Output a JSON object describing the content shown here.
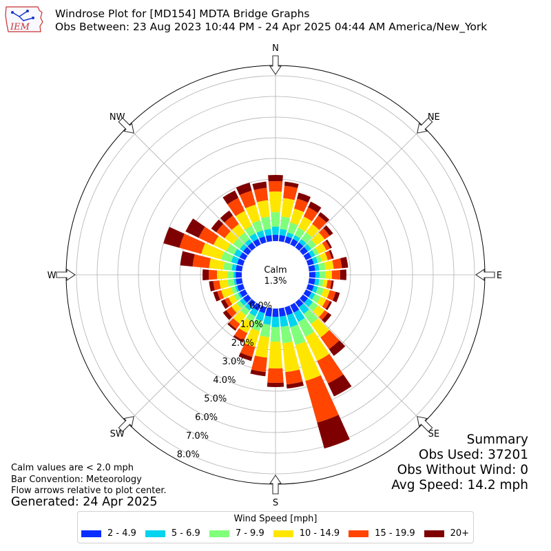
{
  "header": {
    "logo_text": "IEM",
    "title_line1": "Windrose Plot for [MD154] MDTA Bridge Graphs",
    "title_line2": "Obs Between: 23 Aug 2023 10:44 PM - 24 Apr 2025 04:44 AM America/New_York"
  },
  "notes": {
    "calm_note": "Calm values are < 2.0 mph",
    "bar_convention": "Bar Convention: Meteorology",
    "flow_arrows": "Flow arrows relative to plot center.",
    "generated": "Generated: 24 Apr 2025"
  },
  "summary": {
    "heading": "Summary",
    "obs_used": "Obs Used: 37201",
    "obs_without_wind": "Obs Without Wind: 0",
    "avg_speed": "Avg Speed: 14.2 mph"
  },
  "legend": {
    "title": "Wind Speed [mph]",
    "items": [
      {
        "label": "2 - 4.9",
        "color": "#0a2eff"
      },
      {
        "label": "5 - 6.9",
        "color": "#00d4ee"
      },
      {
        "label": "7 - 9.9",
        "color": "#80ff7a"
      },
      {
        "label": "10 - 14.9",
        "color": "#ffe600"
      },
      {
        "label": "15 - 19.9",
        "color": "#ff4500"
      },
      {
        "label": "20+",
        "color": "#7f0000"
      }
    ]
  },
  "chart_data": {
    "type": "windrose",
    "compass_labels": [
      "N",
      "NE",
      "E",
      "SE",
      "S",
      "SW",
      "W",
      "NW"
    ],
    "calm_label": "Calm",
    "calm_value": "1.3%",
    "radial_tick_labels": [
      "0.0%",
      "1.0%",
      "2.0%",
      "3.0%",
      "4.0%",
      "5.0%",
      "6.0%",
      "7.0%",
      "8.0%"
    ],
    "rmax_percent": 8.5,
    "grid": true,
    "units": "percent of observations",
    "speed_bins": [
      "2 - 4.9",
      "5 - 6.9",
      "7 - 9.9",
      "10 - 14.9",
      "15 - 19.9",
      "20+"
    ],
    "bin_colors": [
      "#0a2eff",
      "#00d4ee",
      "#80ff7a",
      "#ffe600",
      "#ff4500",
      "#7f0000"
    ],
    "directions_deg": [
      0,
      10,
      20,
      30,
      40,
      50,
      60,
      70,
      80,
      90,
      100,
      110,
      120,
      130,
      140,
      150,
      160,
      170,
      180,
      190,
      200,
      210,
      220,
      230,
      240,
      250,
      260,
      270,
      280,
      290,
      300,
      310,
      320,
      330,
      340,
      350
    ],
    "cumulative_percent": [
      [
        0.3,
        0.7,
        1.4,
        2.4,
        2.9,
        3.2
      ],
      [
        0.3,
        0.6,
        1.2,
        2.1,
        2.7,
        2.9
      ],
      [
        0.3,
        0.5,
        1.0,
        1.7,
        2.2,
        2.5
      ],
      [
        0.3,
        0.5,
        0.9,
        1.5,
        2.0,
        2.3
      ],
      [
        0.3,
        0.5,
        0.9,
        1.4,
        1.9,
        2.1
      ],
      [
        0.3,
        0.5,
        0.8,
        1.3,
        1.6,
        1.8
      ],
      [
        0.3,
        0.5,
        0.7,
        1.1,
        1.3,
        1.4
      ],
      [
        0.3,
        0.5,
        0.7,
        1.0,
        1.2,
        1.3
      ],
      [
        0.3,
        0.5,
        0.8,
        1.2,
        1.6,
        1.9
      ],
      [
        0.3,
        0.5,
        0.8,
        1.1,
        1.5,
        1.8
      ],
      [
        0.3,
        0.5,
        0.7,
        0.9,
        1.1,
        1.2
      ],
      [
        0.3,
        0.5,
        0.8,
        1.1,
        1.4,
        1.6
      ],
      [
        0.3,
        0.5,
        0.8,
        1.1,
        1.3,
        1.4
      ],
      [
        0.3,
        0.6,
        0.9,
        1.3,
        1.5,
        1.7
      ],
      [
        0.3,
        0.7,
        1.3,
        2.1,
        2.8,
        3.2
      ],
      [
        0.4,
        0.9,
        1.7,
        3.0,
        4.2,
        4.9
      ],
      [
        0.4,
        1.0,
        1.9,
        3.7,
        5.8,
        7.1
      ],
      [
        0.4,
        0.9,
        1.7,
        3.1,
        3.7,
        3.9
      ],
      [
        0.4,
        0.9,
        1.6,
        2.9,
        3.6,
        3.8
      ],
      [
        0.4,
        0.8,
        1.4,
        2.4,
        3.1,
        3.3
      ],
      [
        0.3,
        0.7,
        1.2,
        2.0,
        2.5,
        2.7
      ],
      [
        0.3,
        0.6,
        0.9,
        1.5,
        1.9,
        2.0
      ],
      [
        0.3,
        0.5,
        0.8,
        1.3,
        1.6,
        1.7
      ],
      [
        0.3,
        0.5,
        0.7,
        1.0,
        1.3,
        1.5
      ],
      [
        0.3,
        0.4,
        0.6,
        0.9,
        1.1,
        1.3
      ],
      [
        0.3,
        0.4,
        0.6,
        1.1,
        1.3,
        1.5
      ],
      [
        0.3,
        0.4,
        0.7,
        1.1,
        1.4,
        1.6
      ],
      [
        0.3,
        0.4,
        0.7,
        1.2,
        1.6,
        1.9
      ],
      [
        0.3,
        0.5,
        0.9,
        1.6,
        2.4,
        3.0
      ],
      [
        0.3,
        0.6,
        1.1,
        2.1,
        3.2,
        4.0
      ],
      [
        0.3,
        0.6,
        1.0,
        1.7,
        2.5,
        3.2
      ],
      [
        0.3,
        0.5,
        0.9,
        1.4,
        1.9,
        2.2
      ],
      [
        0.3,
        0.5,
        0.9,
        1.4,
        1.9,
        2.2
      ],
      [
        0.3,
        0.6,
        1.0,
        1.8,
        2.5,
        2.9
      ],
      [
        0.3,
        0.6,
        1.1,
        1.9,
        2.6,
        3.0
      ],
      [
        0.3,
        0.6,
        1.2,
        2.0,
        2.6,
        2.9
      ]
    ]
  }
}
